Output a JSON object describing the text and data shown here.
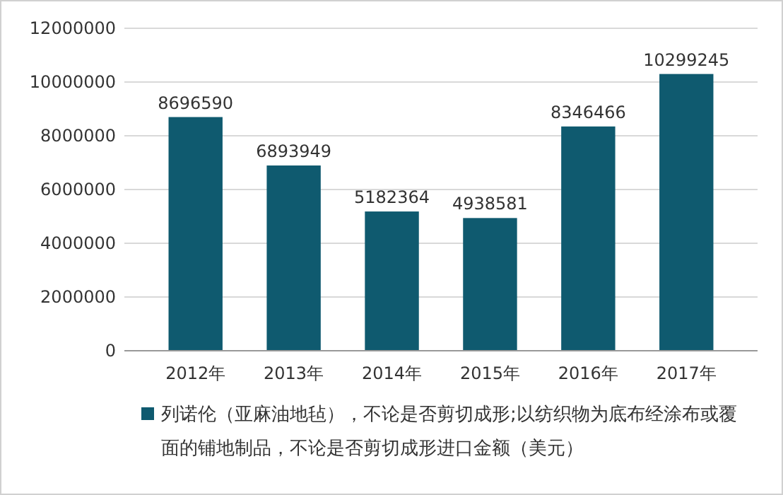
{
  "chart_data": {
    "type": "bar",
    "categories": [
      "2012年",
      "2013年",
      "2014年",
      "2015年",
      "2016年",
      "2017年"
    ],
    "series": [
      {
        "name": "列诺伦（亚麻油地毡），不论是否剪切成形;以纺织物为底布经涂布或覆面的铺地制品，不论是否剪切成形进口金额（美元）",
        "color": "#0f5a6f",
        "values": [
          8696590,
          6893949,
          5182364,
          4938581,
          8346466,
          10299245
        ]
      }
    ],
    "ylim": [
      0,
      12000000
    ],
    "yticks": [
      0,
      2000000,
      4000000,
      6000000,
      8000000,
      10000000,
      12000000
    ],
    "grid": "y",
    "data_labels": true,
    "legend": "bottom"
  }
}
